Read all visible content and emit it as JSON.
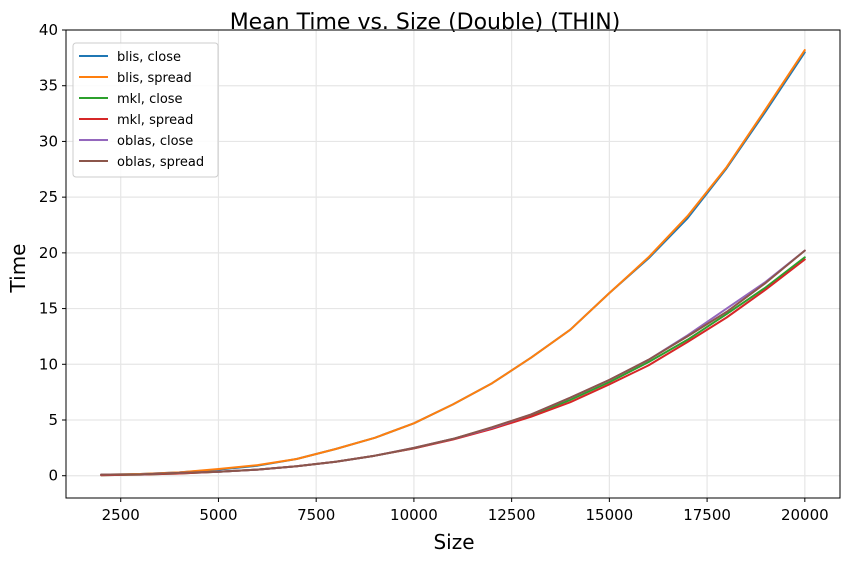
{
  "chart_data": {
    "type": "line",
    "title": "Mean Time vs. Size (Double) (THIN)",
    "xlabel": "Size",
    "ylabel": "Time",
    "xlim": [
      1100,
      20900
    ],
    "ylim": [
      -2,
      40
    ],
    "xticks": [
      2500,
      5000,
      7500,
      10000,
      12500,
      15000,
      17500,
      20000
    ],
    "yticks": [
      0,
      5,
      10,
      15,
      20,
      25,
      30,
      35,
      40
    ],
    "grid": true,
    "legend_position": "upper-left",
    "x": [
      2000,
      3000,
      4000,
      5000,
      6000,
      7000,
      8000,
      9000,
      10000,
      11000,
      12000,
      13000,
      14000,
      15000,
      16000,
      17000,
      18000,
      19000,
      20000
    ],
    "series": [
      {
        "name": "blis, close",
        "color": "#1f77b4",
        "values": [
          0.1,
          0.15,
          0.3,
          0.55,
          0.9,
          1.5,
          2.4,
          3.4,
          4.7,
          6.4,
          8.3,
          10.6,
          13.1,
          16.4,
          19.5,
          23.1,
          27.6,
          32.7,
          38.0
        ]
      },
      {
        "name": "blis, spread",
        "color": "#ff7f0e",
        "values": [
          0.1,
          0.15,
          0.3,
          0.6,
          0.95,
          1.5,
          2.4,
          3.4,
          4.7,
          6.4,
          8.3,
          10.6,
          13.1,
          16.4,
          19.6,
          23.3,
          27.7,
          32.9,
          38.2
        ]
      },
      {
        "name": "mkl, close",
        "color": "#2ca02c",
        "values": [
          0.05,
          0.1,
          0.2,
          0.35,
          0.55,
          0.85,
          1.25,
          1.8,
          2.45,
          3.3,
          4.3,
          5.4,
          6.8,
          8.4,
          10.2,
          12.2,
          14.5,
          16.9,
          19.6
        ]
      },
      {
        "name": "mkl, spread",
        "color": "#d62728",
        "values": [
          0.05,
          0.1,
          0.2,
          0.35,
          0.55,
          0.85,
          1.25,
          1.8,
          2.45,
          3.25,
          4.2,
          5.3,
          6.6,
          8.2,
          9.9,
          12.0,
          14.2,
          16.7,
          19.4
        ]
      },
      {
        "name": "oblas, close",
        "color": "#9467bd",
        "values": [
          0.1,
          0.12,
          0.25,
          0.35,
          0.55,
          0.85,
          1.25,
          1.8,
          2.5,
          3.3,
          4.3,
          5.5,
          7.0,
          8.6,
          10.4,
          12.6,
          15.0,
          17.4,
          20.2
        ]
      },
      {
        "name": "oblas, spread",
        "color": "#8c564b",
        "values": [
          0.1,
          0.12,
          0.25,
          0.35,
          0.55,
          0.85,
          1.25,
          1.8,
          2.5,
          3.3,
          4.35,
          5.5,
          7.0,
          8.6,
          10.4,
          12.5,
          14.7,
          17.3,
          20.2
        ]
      }
    ]
  }
}
